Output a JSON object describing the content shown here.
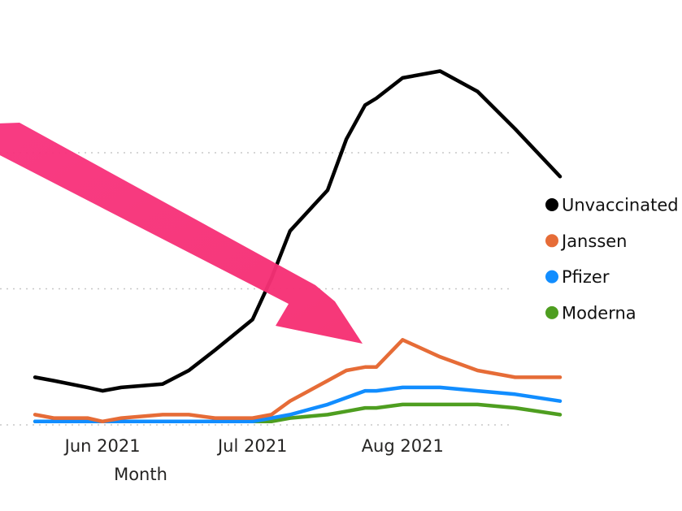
{
  "chart_data": {
    "type": "line",
    "xlabel": "Month",
    "x_ticks": [
      {
        "label": "Jun 2021",
        "x": 1
      },
      {
        "label": "Jul 2021",
        "x": 5
      },
      {
        "label": "Aug 2021",
        "x": 9
      }
    ],
    "x": [
      -0.8,
      -0.3,
      0.6,
      1,
      1.5,
      2.6,
      3.3,
      4,
      5,
      5.5,
      6,
      7,
      7.5,
      8,
      8.3,
      9,
      10,
      11,
      12,
      13.2
    ],
    "ylim": [
      0,
      100
    ],
    "gridlines": [
      0,
      40,
      80
    ],
    "grid": true,
    "legend_position": "right",
    "series": [
      {
        "name": "Unvaccinated",
        "color": "#000000",
        "values": [
          14,
          13,
          11,
          10,
          11,
          12,
          16,
          22,
          31,
          43,
          57,
          69,
          84,
          94,
          96,
          102,
          104,
          98,
          87,
          73
        ]
      },
      {
        "name": "Janssen",
        "color": "#E66C37",
        "values": [
          3,
          2,
          2,
          1,
          2,
          3,
          3,
          2,
          2,
          3,
          7,
          13,
          16,
          17,
          17,
          25,
          20,
          16,
          14,
          14
        ]
      },
      {
        "name": "Pfizer",
        "color": "#118DFF",
        "values": [
          1,
          1,
          1,
          1,
          1,
          1,
          1,
          1,
          1,
          2,
          3,
          6,
          8,
          10,
          10,
          11,
          11,
          10,
          9,
          7
        ]
      },
      {
        "name": "Moderna",
        "color": "#4E9E20",
        "values": [
          1,
          1,
          1,
          1,
          1,
          1,
          1,
          1,
          1,
          1,
          2,
          3,
          4,
          5,
          5,
          6,
          6,
          6,
          5,
          3
        ]
      }
    ]
  }
}
